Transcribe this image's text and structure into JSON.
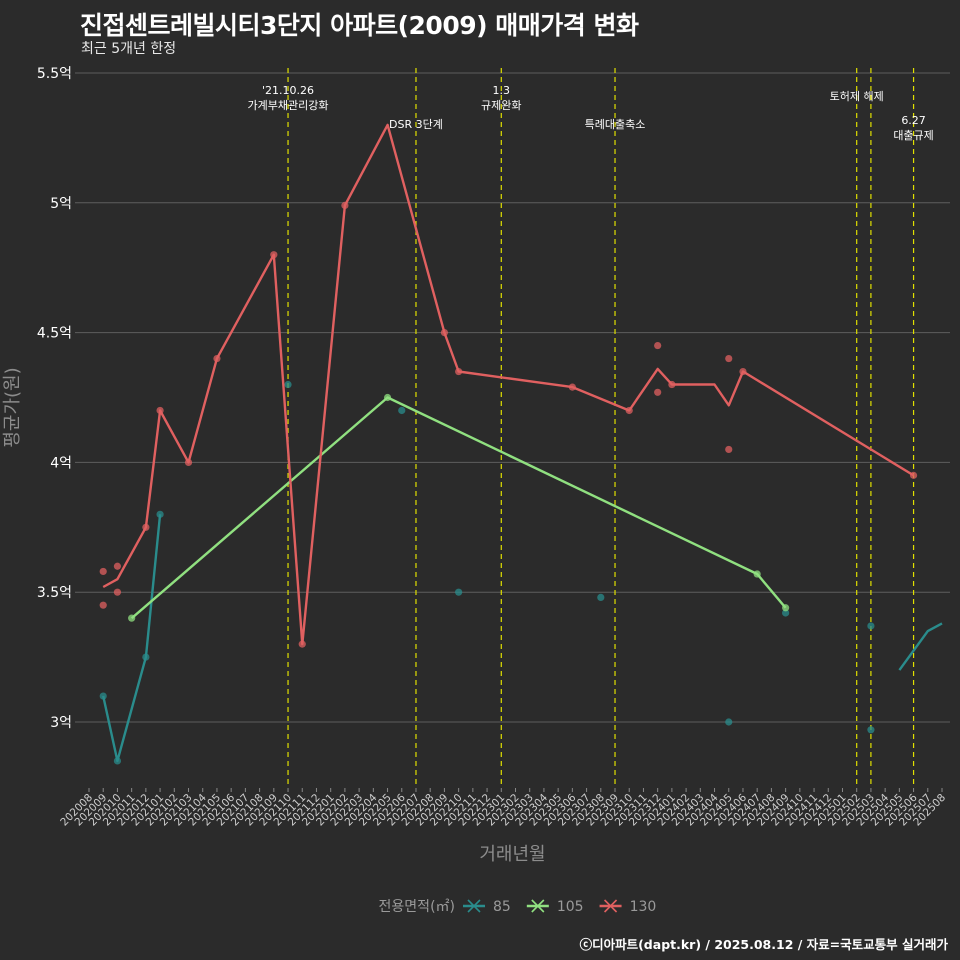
{
  "header": {
    "title": "진접센트레빌시티3단지 아파트(2009) 매매가격 변화",
    "subtitle": "최근 5개년 한정"
  },
  "footer": {
    "caption": "ⓒ디아파트(dapt.kr) / 2025.08.12 / 자료=국토교통부 실거래가"
  },
  "chart_data": {
    "type": "line",
    "title": "진접센트레빌시티3단지 아파트(2009) 매매가격 변화",
    "subtitle": "최근 5개년 한정",
    "xlabel": "거래년월",
    "ylabel": "평균가(원)",
    "ylim": [
      2.7,
      5.5
    ],
    "yticks": [
      3.0,
      3.5,
      4.0,
      4.5,
      5.0,
      5.5
    ],
    "ytick_labels": [
      "3억",
      "3.5억",
      "4억",
      "4.5억",
      "5억",
      "5.5억"
    ],
    "categories": [
      "202008",
      "202009",
      "202010",
      "202011",
      "202012",
      "202101",
      "202102",
      "202103",
      "202104",
      "202105",
      "202106",
      "202107",
      "202108",
      "202109",
      "202110",
      "202111",
      "202112",
      "202201",
      "202202",
      "202203",
      "202204",
      "202205",
      "202206",
      "202207",
      "202208",
      "202209",
      "202210",
      "202211",
      "202212",
      "202301",
      "202302",
      "202303",
      "202304",
      "202305",
      "202306",
      "202307",
      "202308",
      "202309",
      "202310",
      "202311",
      "202312",
      "202401",
      "202402",
      "202403",
      "202404",
      "202405",
      "202406",
      "202407",
      "202408",
      "202409",
      "202410",
      "202411",
      "202412",
      "202501",
      "202502",
      "202503",
      "202504",
      "202505",
      "202506",
      "202507",
      "202508"
    ],
    "grid": true,
    "legend_position": "bottom",
    "legend_title": "전용면적(㎡)",
    "series": [
      {
        "name": "85",
        "color": "#2a8c8c",
        "line": [
          [
            "202009",
            3.1
          ],
          [
            "202010",
            2.85
          ],
          [
            "202012",
            3.25
          ],
          [
            "202101",
            3.8
          ]
        ],
        "points": [
          [
            "202009",
            3.1
          ],
          [
            "202010",
            2.85
          ],
          [
            "202012",
            3.25
          ],
          [
            "202101",
            3.8
          ],
          [
            "202110",
            4.3
          ],
          [
            "202206",
            4.2
          ],
          [
            "202210",
            3.5
          ],
          [
            "202308",
            3.48
          ],
          [
            "202405",
            3.0
          ],
          [
            "202409",
            3.42
          ],
          [
            "202503",
            3.37
          ],
          [
            "202503",
            2.97
          ]
        ],
        "line2": [
          [
            "202505",
            3.2
          ],
          [
            "202507",
            3.35
          ],
          [
            "202508",
            3.38
          ]
        ]
      },
      {
        "name": "105",
        "color": "#90e080",
        "line": [
          [
            "202011",
            3.4
          ],
          [
            "202205",
            4.25
          ],
          [
            "202407",
            3.57
          ],
          [
            "202409",
            3.44
          ]
        ],
        "points": [
          [
            "202011",
            3.4
          ],
          [
            "202205",
            4.25
          ],
          [
            "202407",
            3.57
          ],
          [
            "202409",
            3.44
          ]
        ]
      },
      {
        "name": "130",
        "color": "#e06060",
        "line": [
          [
            "202009",
            3.52
          ],
          [
            "202010",
            3.55
          ],
          [
            "202012",
            3.75
          ],
          [
            "202101",
            4.2
          ],
          [
            "202103",
            4.0
          ],
          [
            "202105",
            4.4
          ],
          [
            "202109",
            4.8
          ],
          [
            "202111",
            3.3
          ],
          [
            "202202",
            4.99
          ],
          [
            "202205",
            5.3
          ],
          [
            "202209",
            4.5
          ],
          [
            "202210",
            4.35
          ],
          [
            "202306",
            4.29
          ],
          [
            "202310",
            4.2
          ],
          [
            "202312",
            4.36
          ],
          [
            "202401",
            4.3
          ],
          [
            "202404",
            4.3
          ],
          [
            "202405",
            4.22
          ],
          [
            "202406",
            4.35
          ],
          [
            "202506",
            3.95
          ]
        ],
        "points": [
          [
            "202009",
            3.58
          ],
          [
            "202009",
            3.45
          ],
          [
            "202010",
            3.6
          ],
          [
            "202010",
            3.5
          ],
          [
            "202012",
            3.75
          ],
          [
            "202101",
            4.2
          ],
          [
            "202103",
            4.0
          ],
          [
            "202105",
            4.4
          ],
          [
            "202109",
            4.8
          ],
          [
            "202111",
            3.3
          ],
          [
            "202202",
            4.99
          ],
          [
            "202209",
            4.5
          ],
          [
            "202210",
            4.35
          ],
          [
            "202306",
            4.29
          ],
          [
            "202310",
            4.2
          ],
          [
            "202312",
            4.45
          ],
          [
            "202312",
            4.27
          ],
          [
            "202401",
            4.3
          ],
          [
            "202405",
            4.4
          ],
          [
            "202405",
            4.05
          ],
          [
            "202406",
            4.35
          ],
          [
            "202506",
            3.95
          ]
        ]
      }
    ],
    "annotations": [
      {
        "x": "202110",
        "lines": [
          "'21.10.26",
          "가계부채관리강화"
        ],
        "row": 0
      },
      {
        "x": "202207",
        "lines": [
          "DSR 3단계"
        ],
        "row": 1
      },
      {
        "x": "202301",
        "lines": [
          "1.3",
          "규제완화"
        ],
        "row": 0
      },
      {
        "x": "202309",
        "lines": [
          "특례대출축소"
        ],
        "row": 1
      },
      {
        "x": "202502",
        "lines": [
          "토허제 해제"
        ],
        "row": 0
      },
      {
        "x": "202503",
        "lines": [],
        "row": 0
      },
      {
        "x": "202506",
        "lines": [
          "6.27",
          "대출규제"
        ],
        "row": 1
      }
    ]
  }
}
